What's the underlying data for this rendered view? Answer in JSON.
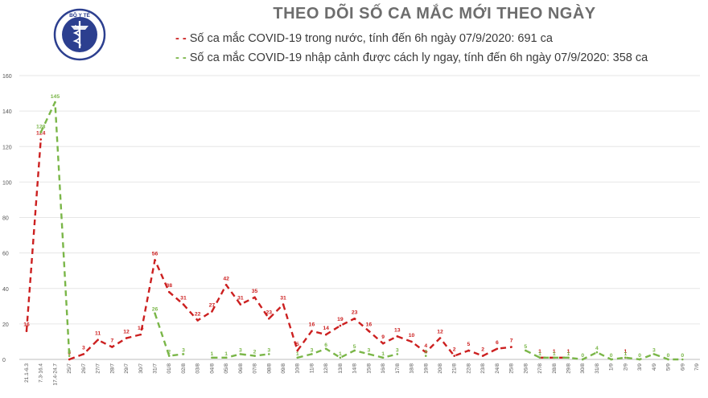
{
  "header": {
    "title": "THEO DÕI SỐ CA MẮC MỚI THEO NGÀY",
    "logo_text": "BỘ Y TẾ"
  },
  "colors": {
    "domestic": "#cc2020",
    "imported": "#7ab648",
    "grid": "#e6e6e6",
    "text": "#555555"
  },
  "chart_data": {
    "type": "line",
    "title": "THEO DÕI SỐ CA MẮC MỚI THEO NGÀY",
    "ylim": [
      0,
      160
    ],
    "yticks": [
      0,
      20,
      40,
      60,
      80,
      100,
      120,
      140,
      160
    ],
    "grid": true,
    "legend_position": "top",
    "categories": [
      "21.1-6.3",
      "7.3-16.4",
      "17.4-24.7",
      "25/7",
      "26/7",
      "27/7",
      "28/7",
      "29/7",
      "30/7",
      "31/7",
      "01/8",
      "02/8",
      "03/8",
      "04/8",
      "05/8",
      "06/8",
      "07/8",
      "08/8",
      "09/8",
      "10/8",
      "11/8",
      "12/8",
      "13/8",
      "14/8",
      "15/8",
      "16/8",
      "17/8",
      "18/8",
      "19/8",
      "20/8",
      "21/8",
      "22/8",
      "23/8",
      "24/8",
      "25/8",
      "26/8",
      "27/8",
      "28/8",
      "29/8",
      "30/8",
      "31/8",
      "1/9",
      "2/9",
      "3/9",
      "4/9",
      "5/9",
      "6/9",
      "7/9"
    ],
    "series": [
      {
        "name": "Số ca mắc COVID-19 trong nước, tính đến 6h ngày 07/9/2020: 691 ca",
        "color": "#cc2020",
        "style": "dashed",
        "values": [
          16,
          124,
          null,
          0,
          3,
          11,
          7,
          12,
          14,
          56,
          38,
          31,
          22,
          27,
          42,
          31,
          35,
          23,
          31,
          5,
          16,
          14,
          19,
          23,
          16,
          9,
          13,
          10,
          4,
          12,
          2,
          5,
          2,
          6,
          7,
          null,
          1,
          1,
          1,
          null,
          null,
          null,
          1,
          null,
          null,
          null,
          null,
          null
        ]
      },
      {
        "name": "Số ca mắc COVID-19 nhập cảnh được cách ly ngay, tính đến 6h ngày 07/9/2020: 358 ca",
        "color": "#7ab648",
        "style": "dashed",
        "values": [
          null,
          128,
          145,
          2,
          null,
          null,
          null,
          null,
          null,
          26,
          2,
          3,
          null,
          1,
          1,
          3,
          2,
          3,
          null,
          1,
          3,
          6,
          1,
          5,
          3,
          1,
          3,
          null,
          2,
          null,
          null,
          null,
          null,
          null,
          null,
          5,
          1,
          1,
          1,
          0,
          4,
          0,
          1,
          0,
          3,
          0,
          0,
          null
        ]
      }
    ]
  }
}
